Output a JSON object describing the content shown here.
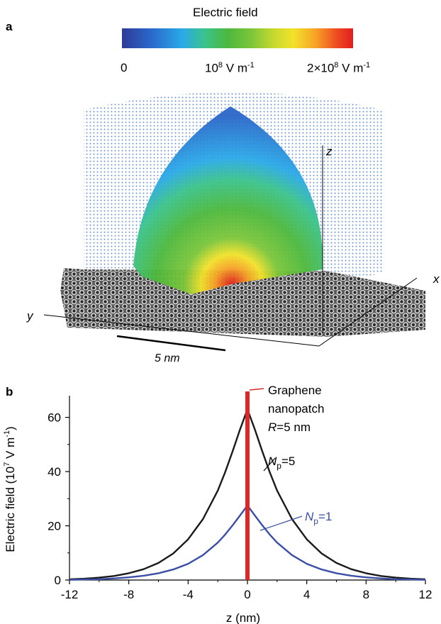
{
  "panel_a": {
    "label": "a",
    "colorbar": {
      "title": "Electric field",
      "tick_min": "0",
      "tick_mid_base": "10",
      "tick_mid_exp": "8",
      "tick_mid_unit": " V m",
      "tick_mid_unit_exp": "-1",
      "tick_max_base": "2×10",
      "tick_max_exp": "8",
      "tick_max_unit": " V m",
      "tick_max_unit_exp": "-1",
      "colors": [
        "#2e3a98",
        "#2aa9e8",
        "#4cb83c",
        "#f2e22a",
        "#e01e1e"
      ]
    },
    "axes": {
      "z": "z",
      "x": "x",
      "y": "y"
    },
    "scale_bar": "5 nm"
  },
  "panel_b": {
    "label": "b",
    "chart_data": {
      "type": "line",
      "xlabel": "z (nm)",
      "ylabel_pre": "Electric field (10",
      "ylabel_exp": "7",
      "ylabel_mid": " V m",
      "ylabel_exp2": "-1",
      "ylabel_post": ")",
      "xlim": [
        -12,
        12
      ],
      "ylim": [
        0,
        68
      ],
      "x_ticks": [
        "-12",
        "-8",
        "-4",
        "0",
        "4",
        "8",
        "12"
      ],
      "y_ticks": [
        "0",
        "20",
        "40",
        "60"
      ],
      "series": [
        {
          "label_base": "N",
          "label_sub": "p",
          "label_value": "=5",
          "color": "#1a1a1a",
          "x": [
            -12,
            -11,
            -10,
            -9,
            -8,
            -7,
            -6,
            -5,
            -4,
            -3,
            -2,
            -1.5,
            -1,
            -0.5,
            0,
            0.5,
            1,
            1.5,
            2,
            3,
            4,
            5,
            6,
            7,
            8,
            9,
            10,
            11,
            12
          ],
          "y": [
            0.3,
            0.5,
            0.9,
            1.5,
            2.5,
            4,
            6.3,
            9.8,
            15,
            22.5,
            33,
            39.8,
            47.5,
            55.5,
            63,
            55.5,
            47.5,
            39.8,
            33,
            22.5,
            15,
            9.8,
            6.3,
            4,
            2.5,
            1.5,
            0.9,
            0.5,
            0.3
          ]
        },
        {
          "label_base": "N",
          "label_sub": "p",
          "label_value": "=1",
          "color": "#3a4ea6",
          "x": [
            -12,
            -11,
            -10,
            -9,
            -8,
            -7,
            -6,
            -5,
            -4,
            -3,
            -2,
            -1.5,
            -1,
            -0.5,
            0,
            0.5,
            1,
            1.5,
            2,
            3,
            4,
            5,
            6,
            7,
            8,
            9,
            10,
            11,
            12
          ],
          "y": [
            0.1,
            0.2,
            0.3,
            0.6,
            1,
            1.6,
            2.5,
            3.9,
            6,
            9.2,
            13.8,
            16.8,
            20.2,
            23.8,
            27.5,
            23.8,
            20.2,
            16.8,
            13.8,
            9.2,
            6,
            3.9,
            2.5,
            1.6,
            1,
            0.6,
            0.3,
            0.2,
            0.1
          ]
        }
      ],
      "marker": {
        "x": 0,
        "color": "#d92a2a",
        "lines": [
          "Graphene",
          "nanopatch"
        ],
        "r_label_italic": "R",
        "r_label_value": "=5 nm"
      }
    }
  }
}
